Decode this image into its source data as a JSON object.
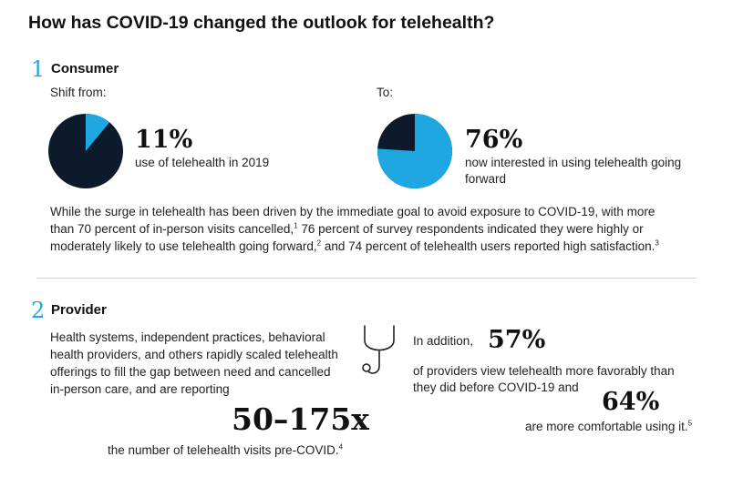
{
  "title": "How has COVID-19 changed the outlook for telehealth?",
  "colors": {
    "accent": "#1fa7e1",
    "dark": "#0c1a2b",
    "divider": "#d9d9d9"
  },
  "consumer": {
    "number": "1",
    "label": "Consumer",
    "shift_from_label": "Shift from:",
    "to_label": "To:",
    "before": {
      "value": "11%",
      "fraction": 0.11,
      "caption": "use of telehealth in 2019"
    },
    "after": {
      "value": "76%",
      "fraction": 0.76,
      "caption_line1": "now interested in using telehealth going",
      "caption_line2": "forward"
    },
    "paragraph": {
      "line1": "While the surge in telehealth has been driven by the immediate goal to avoid exposure to COVID-19, with more",
      "line2_a": "than 70 percent of in-person visits cancelled,",
      "sup1": "1",
      "line2_b": " 76 percent of survey respondents indicated they were highly or",
      "line3_a": "moderately likely to use telehealth going forward,",
      "sup2": "2",
      "line3_b": " and 74 percent of telehealth users reported high satisfaction.",
      "sup3": "3"
    }
  },
  "provider": {
    "number": "2",
    "label": "Provider",
    "left_text": [
      "Health systems, independent practices, behavioral",
      "health providers, and others rapidly scaled telehealth",
      "offerings to fill the gap between need and cancelled",
      "in-person care, and are reporting"
    ],
    "visits_value": "50–175x",
    "visits_caption": "the number of telehealth visits pre-COVID.",
    "visits_sup": "4",
    "icon": "stethoscope-icon",
    "in_addition": "In addition,",
    "favorable_value": "57%",
    "favorable_line1": "of providers view telehealth more favorably than",
    "favorable_line2": "they did before COVID-19 and",
    "comfortable_value": "64%",
    "comfortable_caption": "are more comfortable using it.",
    "comfortable_sup": "5"
  }
}
